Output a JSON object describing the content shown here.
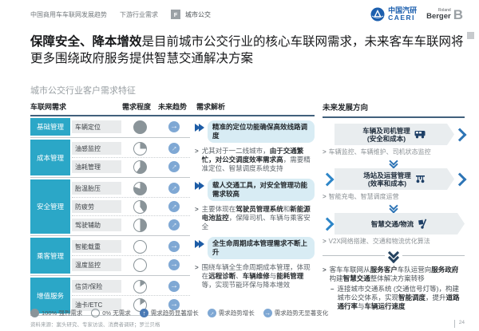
{
  "header": {
    "breadcrumb": [
      "中国商用车车联网发展趋势",
      "下游行业需求"
    ],
    "section_letter": "F",
    "section_name": "城市公交",
    "logo_caeri_cn": "中国汽研",
    "logo_caeri_en": "CAERI",
    "logo_rb_top": "Roland",
    "logo_rb_bottom": "Berger",
    "logo_rb_mark": "B"
  },
  "title": {
    "bold": "保障安全、降本增效",
    "rest": "是目前城市公交行业的核心车联网需求，未来客车车联网将更多围绕政府服务提供智慧交通解决方案"
  },
  "subtitle": "城市公交行业客户需求特征",
  "table": {
    "headers": [
      "车联网需求",
      "需求程度",
      "未来趋势",
      "需求解析"
    ],
    "groups": [
      {
        "category": "基础管理",
        "items": [
          {
            "label": "车辆定位",
            "demand_pct": 100,
            "trend": "stable"
          }
        ]
      },
      {
        "category": "成本管理",
        "items": [
          {
            "label": "油感监控",
            "demand_pct": 25,
            "trend": "up"
          },
          {
            "label": "油耗管理",
            "demand_pct": 60,
            "trend": "up"
          }
        ]
      },
      {
        "category": "安全管理",
        "items": [
          {
            "label": "胎温胎压",
            "demand_pct": 80,
            "trend": "up"
          },
          {
            "label": "防疲劳",
            "demand_pct": 40,
            "trend": "up"
          },
          {
            "label": "驾驶辅助",
            "demand_pct": 50,
            "trend": "up"
          }
        ]
      },
      {
        "category": "乘客管理",
        "items": [
          {
            "label": "智能载重",
            "demand_pct": 0,
            "trend": "stable"
          },
          {
            "label": "温度监控",
            "demand_pct": 0,
            "trend": "stable"
          }
        ]
      },
      {
        "category": "增值服务",
        "items": [
          {
            "label": "信贷/保险",
            "demand_pct": 15,
            "trend": "stable"
          },
          {
            "label": "油卡/ETC",
            "demand_pct": 15,
            "trend": "stable"
          }
        ]
      }
    ]
  },
  "analysis": {
    "items": [
      {
        "type": "highlight",
        "rich": [
          [
            1,
            "精准的定位功能确保高效线路调度"
          ]
        ]
      },
      {
        "type": "bullet",
        "rich": [
          [
            0,
            "尤其对于一二线城市，"
          ],
          [
            1,
            "由于交通繁忙，对公交调度效率需求高"
          ],
          [
            0,
            "，需要精准定位、智慧调度系统支持"
          ]
        ]
      },
      {
        "type": "highlight",
        "rich": [
          [
            1,
            "载人交通工具，对安全管理功能需求较高"
          ]
        ]
      },
      {
        "type": "bullet",
        "rich": [
          [
            0,
            "主要体现在"
          ],
          [
            1,
            "驾驶员管理系统"
          ],
          [
            0,
            "和"
          ],
          [
            1,
            "新能源电池监控"
          ],
          [
            0,
            "，保障司机、车辆与乘客安全"
          ]
        ]
      },
      {
        "type": "highlight",
        "rich": [
          [
            1,
            "全生命周期成本管理需求不断上升"
          ]
        ]
      },
      {
        "type": "bullet",
        "rich": [
          [
            0,
            "围绕车辆全生命周期成本管理，体现在"
          ],
          [
            1,
            "远程诊断"
          ],
          [
            0,
            "、"
          ],
          [
            1,
            "车辆维修"
          ],
          [
            0,
            "与"
          ],
          [
            1,
            "能耗管理"
          ],
          [
            0,
            "等，实现节能环保与降本增效"
          ]
        ]
      }
    ]
  },
  "future": {
    "header": "未来发展方向",
    "banners": [
      {
        "line1": "车辆及司机管理",
        "line2": "(安全和成本)",
        "icon": "bus-icon",
        "left_chevron": false,
        "right_chevron": true,
        "bullet": "车辆监控、车辆维护、司机状态监控"
      },
      {
        "line1": "场站及运营管理",
        "line2": "(效率和成本)",
        "icon": "station-icon",
        "left_chevron": true,
        "right_chevron": true,
        "bullet": "智能充电、智慧调度运营"
      },
      {
        "line1": "智慧交通/物流",
        "line2": "",
        "icon": "trolley-icon",
        "left_chevron": true,
        "right_chevron": false,
        "bullet": "V2X网络搭建、交通和物流优化算法"
      }
    ],
    "summary": {
      "rich": [
        [
          0,
          "客车车联网从"
        ],
        [
          1,
          "服务客户"
        ],
        [
          0,
          "车队运营向"
        ],
        [
          1,
          "服务政府"
        ],
        [
          0,
          "构建"
        ],
        [
          1,
          "智慧交通"
        ],
        [
          0,
          "整体解决方案转移"
        ]
      ],
      "sub_rich": [
        [
          0,
          "连接城市交通系统 (交通信号灯等)，构建城市公交体系，实现"
        ],
        [
          1,
          "智能调度"
        ],
        [
          0,
          "，提升"
        ],
        [
          1,
          "道路通行率"
        ],
        [
          0,
          "与"
        ],
        [
          1,
          "车辆运行速度"
        ]
      ]
    }
  },
  "legend": [
    {
      "icon": "pie-100-icon",
      "label": "100% 强烈需求"
    },
    {
      "icon": "pie-0-icon",
      "label": "0% 无需求"
    },
    {
      "icon": "arrow-up-circle-icon",
      "label": "需求趋势显著增长"
    },
    {
      "icon": "arrow-diagonal-circle-icon",
      "label": "需求趋势增长"
    },
    {
      "icon": "arrow-right-circle-icon",
      "label": "需求趋势无显著变化"
    }
  ],
  "footer": {
    "source": "资料来源：案头研究、专家访谈、消费者调研；罗兰贝格",
    "page": "24"
  },
  "colors": {
    "category_teal": "#2ba7c7",
    "harvey_gray": "#8a9499",
    "trend_blue": "#7fa8d4",
    "trend_strong_blue": "#4a7ab5",
    "highlight_bg": "#d8ecf4",
    "navy": "#1d5ca6",
    "chevron_blue": "#2e86c8",
    "ribbon_gray": "#e9edef",
    "header_rule": "#41607c",
    "caeri_blue": "#1c5fae"
  }
}
